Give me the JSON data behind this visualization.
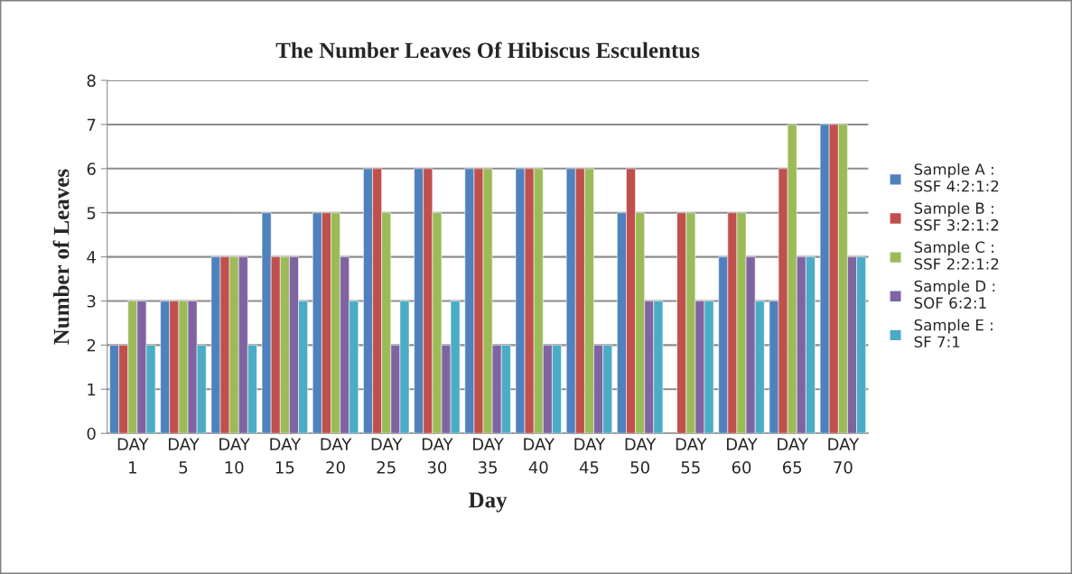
{
  "chart_data": {
    "type": "bar",
    "title": "The Number Leaves Of Hibiscus Esculentus",
    "xlabel": "Day",
    "ylabel": "Number of Leaves",
    "categories": [
      "DAY\n1",
      "DAY\n5",
      "DAY\n10",
      "DAY\n15",
      "DAY\n20",
      "DAY\n25",
      "DAY\n30",
      "DAY\n35",
      "DAY\n40",
      "DAY\n45",
      "DAY\n50",
      "DAY\n55",
      "DAY\n60",
      "DAY\n65",
      "DAY\n70"
    ],
    "series": [
      {
        "name": "Sample A :\nSSF 4:2:1:2",
        "color": "#4f81bd",
        "values": [
          2,
          3,
          4,
          5,
          5,
          6,
          6,
          6,
          6,
          6,
          5,
          null,
          4,
          3,
          7
        ]
      },
      {
        "name": "Sample B :\nSSF 3:2:1:2",
        "color": "#c0504d",
        "values": [
          2,
          3,
          4,
          4,
          5,
          6,
          6,
          6,
          6,
          6,
          6,
          5,
          5,
          6,
          7
        ]
      },
      {
        "name": "Sample C :\nSSF 2:2:1:2",
        "color": "#9bbb59",
        "values": [
          3,
          3,
          4,
          4,
          5,
          5,
          5,
          6,
          6,
          6,
          5,
          5,
          5,
          7,
          7
        ]
      },
      {
        "name": "Sample D :\nSOF 6:2:1",
        "color": "#8064a2",
        "values": [
          3,
          3,
          4,
          4,
          4,
          2,
          2,
          2,
          2,
          2,
          3,
          3,
          4,
          4,
          4
        ]
      },
      {
        "name": "Sample E :\nSF 7:1",
        "color": "#4bacc6",
        "values": [
          2,
          2,
          2,
          3,
          3,
          3,
          3,
          2,
          2,
          2,
          3,
          3,
          3,
          4,
          4
        ]
      }
    ],
    "ylim": [
      0,
      8
    ],
    "yticks": [
      0,
      1,
      2,
      3,
      4,
      5,
      6,
      7,
      8
    ],
    "grid": "y",
    "legend": "right"
  }
}
